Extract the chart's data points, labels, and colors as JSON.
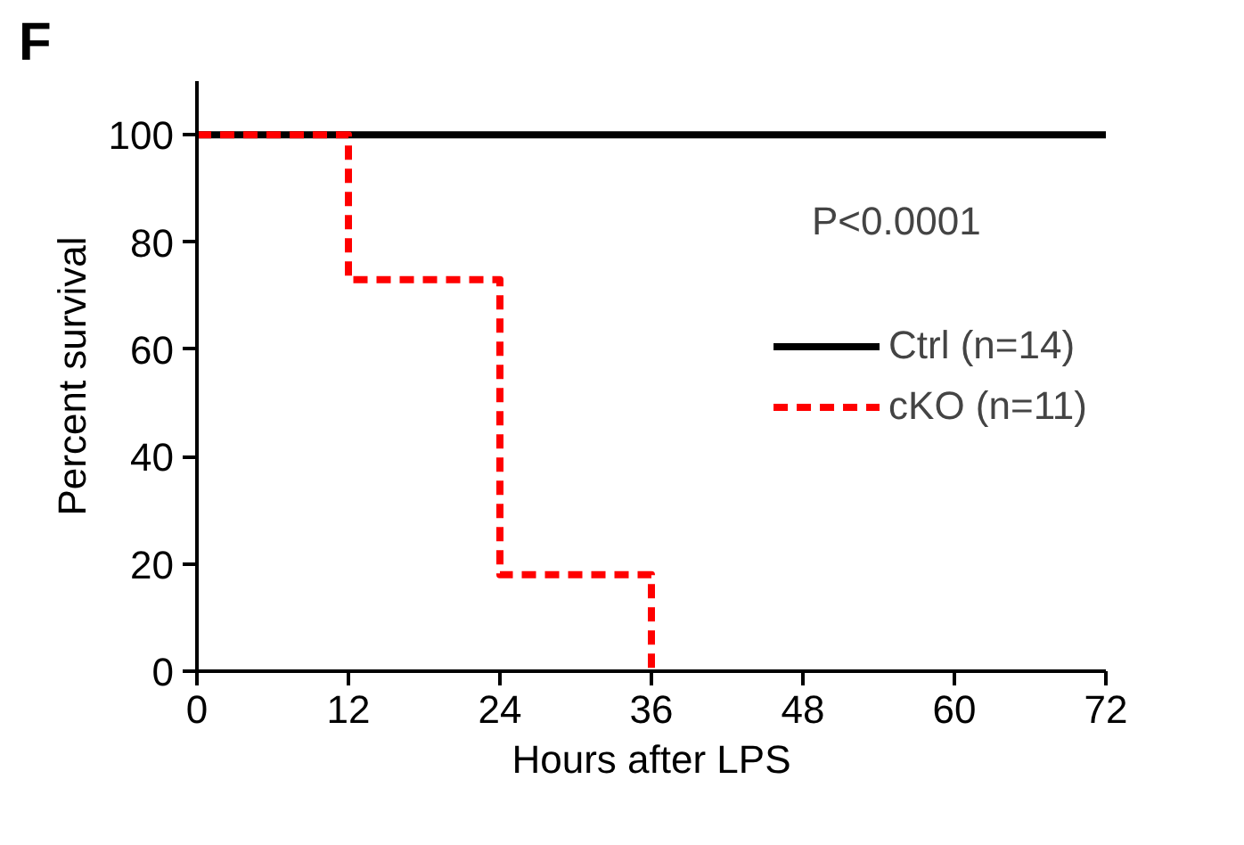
{
  "chart_data": {
    "type": "step",
    "xlabel": "Hours after LPS",
    "ylabel": "Percent survival",
    "annotations": [
      "F",
      "P<0.0001"
    ],
    "xlim": [
      0,
      72
    ],
    "xticks": [
      0,
      12,
      24,
      36,
      48,
      60,
      72
    ],
    "ylim": [
      0,
      110
    ],
    "yticks": [
      0,
      20,
      40,
      60,
      80,
      100
    ],
    "grid": false,
    "legend": "right",
    "series": [
      {
        "name": "Ctrl (n=14)",
        "color": "#000000",
        "x": [
          0,
          72
        ],
        "values": [
          100,
          100
        ],
        "line_style": "solid"
      },
      {
        "name": "cKO (n=11)",
        "color": "#ff0000",
        "x": [
          0,
          12,
          24,
          36
        ],
        "values": [
          100,
          73,
          18,
          0
        ],
        "line_style": "dashed"
      }
    ]
  }
}
